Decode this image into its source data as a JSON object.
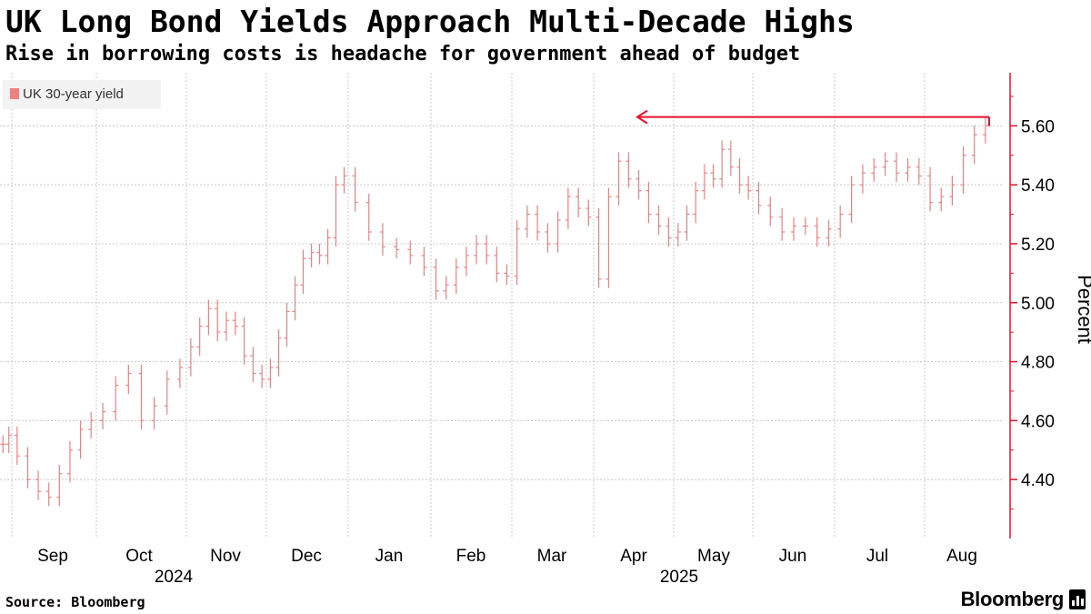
{
  "title": "UK Long Bond Yields Approach Multi-Decade Highs",
  "subtitle": "Rise in borrowing costs is headache for government ahead of budget",
  "source": "Source: Bloomberg",
  "brand": "Bloomberg",
  "brand_icon": "bloomberg-terminal-icon",
  "colors": {
    "series": "#f08080",
    "axis": "#e8112d",
    "annotation": "#e8112d",
    "grid": "#c8c8c8"
  },
  "chart_data": {
    "type": "line",
    "style": "ohlc-bars",
    "legend": {
      "label": "UK 30-year yield",
      "position": "top-left"
    },
    "ylabel": "Percent",
    "yticks": [
      "4.40",
      "4.60",
      "4.80",
      "5.00",
      "5.20",
      "5.40",
      "5.60"
    ],
    "ylim": [
      4.2,
      5.78
    ],
    "y_axis_side": "right",
    "grid": true,
    "xticks": [
      "Sep",
      "Oct",
      "Nov",
      "Dec",
      "Jan",
      "Feb",
      "Mar",
      "Apr",
      "May",
      "Jun",
      "Jul",
      "Aug"
    ],
    "year_labels": [
      {
        "label": "2024",
        "month": "Oct"
      },
      {
        "label": "2025",
        "month": "Apr"
      }
    ],
    "annotation": {
      "type": "arrow",
      "value": 5.63,
      "from_month": "Aug",
      "to_month": "Apr",
      "note": "horizontal arrow at the current level pointing back to the April high"
    },
    "series": [
      {
        "name": "UK 30-year yield",
        "points": [
          [
            "Aug",
            4.52
          ],
          [
            "Aug",
            4.55
          ],
          [
            "Sep",
            4.48
          ],
          [
            "Sep",
            4.4
          ],
          [
            "Sep",
            4.36
          ],
          [
            "Sep",
            4.34
          ],
          [
            "Sep",
            4.42
          ],
          [
            "Sep",
            4.5
          ],
          [
            "Sep",
            4.57
          ],
          [
            "Sep",
            4.6
          ],
          [
            "Oct",
            4.63
          ],
          [
            "Oct",
            4.72
          ],
          [
            "Oct",
            4.76
          ],
          [
            "Oct",
            4.6
          ],
          [
            "Oct",
            4.65
          ],
          [
            "Oct",
            4.74
          ],
          [
            "Oct",
            4.78
          ],
          [
            "Nov",
            4.85
          ],
          [
            "Nov",
            4.92
          ],
          [
            "Nov",
            4.98
          ],
          [
            "Nov",
            4.9
          ],
          [
            "Nov",
            4.94
          ],
          [
            "Nov",
            4.92
          ],
          [
            "Nov",
            4.82
          ],
          [
            "Nov",
            4.76
          ],
          [
            "Nov",
            4.74
          ],
          [
            "Dec",
            4.78
          ],
          [
            "Dec",
            4.88
          ],
          [
            "Dec",
            4.97
          ],
          [
            "Dec",
            5.06
          ],
          [
            "Dec",
            5.15
          ],
          [
            "Dec",
            5.17
          ],
          [
            "Dec",
            5.16
          ],
          [
            "Dec",
            5.22
          ],
          [
            "Dec",
            5.4
          ],
          [
            "Dec",
            5.43
          ],
          [
            "Jan",
            5.34
          ],
          [
            "Jan",
            5.24
          ],
          [
            "Jan",
            5.19
          ],
          [
            "Jan",
            5.18
          ],
          [
            "Jan",
            5.16
          ],
          [
            "Jan",
            5.12
          ],
          [
            "Feb",
            5.04
          ],
          [
            "Feb",
            5.06
          ],
          [
            "Feb",
            5.12
          ],
          [
            "Feb",
            5.16
          ],
          [
            "Feb",
            5.2
          ],
          [
            "Feb",
            5.16
          ],
          [
            "Feb",
            5.1
          ],
          [
            "Feb",
            5.09
          ],
          [
            "Mar",
            5.25
          ],
          [
            "Mar",
            5.3
          ],
          [
            "Mar",
            5.24
          ],
          [
            "Mar",
            5.2
          ],
          [
            "Mar",
            5.28
          ],
          [
            "Mar",
            5.36
          ],
          [
            "Mar",
            5.32
          ],
          [
            "Mar",
            5.29
          ],
          [
            "Apr",
            5.08
          ],
          [
            "Apr",
            5.36
          ],
          [
            "Apr",
            5.48
          ],
          [
            "Apr",
            5.42
          ],
          [
            "Apr",
            5.38
          ],
          [
            "Apr",
            5.3
          ],
          [
            "Apr",
            5.26
          ],
          [
            "Apr",
            5.22
          ],
          [
            "May",
            5.24
          ],
          [
            "May",
            5.3
          ],
          [
            "May",
            5.38
          ],
          [
            "May",
            5.44
          ],
          [
            "May",
            5.42
          ],
          [
            "May",
            5.52
          ],
          [
            "May",
            5.46
          ],
          [
            "May",
            5.4
          ],
          [
            "May",
            5.38
          ],
          [
            "Jun",
            5.33
          ],
          [
            "Jun",
            5.29
          ],
          [
            "Jun",
            5.24
          ],
          [
            "Jun",
            5.26
          ],
          [
            "Jun",
            5.26
          ],
          [
            "Jun",
            5.22
          ],
          [
            "Jun",
            5.25
          ],
          [
            "Jul",
            5.3
          ],
          [
            "Jul",
            5.4
          ],
          [
            "Jul",
            5.44
          ],
          [
            "Jul",
            5.46
          ],
          [
            "Jul",
            5.48
          ],
          [
            "Jul",
            5.44
          ],
          [
            "Jul",
            5.46
          ],
          [
            "Jul",
            5.43
          ],
          [
            "Aug",
            5.34
          ],
          [
            "Aug",
            5.36
          ],
          [
            "Aug",
            5.4
          ],
          [
            "Aug",
            5.5
          ],
          [
            "Aug",
            5.57
          ],
          [
            "Aug",
            5.6
          ]
        ]
      }
    ]
  }
}
